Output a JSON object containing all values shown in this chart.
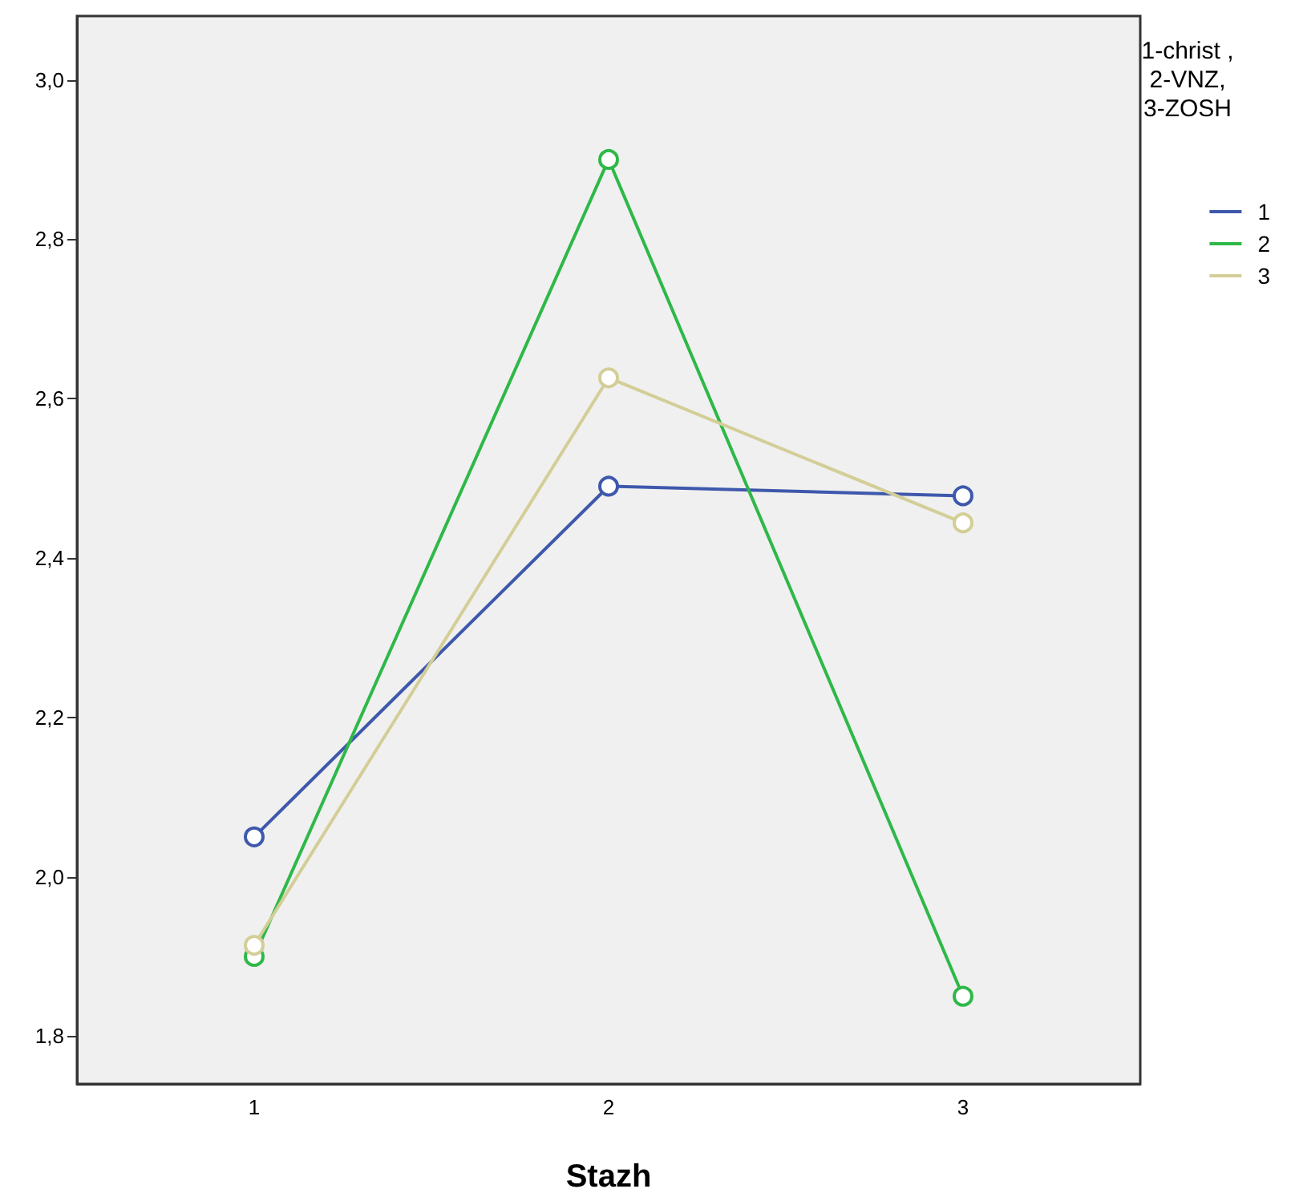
{
  "chart_data": {
    "type": "line",
    "xlabel": "Stazh",
    "legend_title": "1-christ ,\n2-VNZ,\n3-ZOSH",
    "categories": [
      "1",
      "2",
      "3"
    ],
    "series": [
      {
        "name": "1",
        "color": "#3e58ac",
        "values": [
          2.05,
          2.49,
          2.478
        ]
      },
      {
        "name": "2",
        "color": "#2eb848",
        "values": [
          1.9,
          2.9,
          1.85
        ]
      },
      {
        "name": "3",
        "color": "#d3ce97",
        "values": [
          1.914,
          2.626,
          2.444
        ]
      }
    ],
    "ylim": [
      1.74,
      3.08
    ],
    "yticks": [
      {
        "value": 1.8,
        "label": "1,8"
      },
      {
        "value": 2,
        "label": "2,0"
      },
      {
        "value": 2.2,
        "label": "2,2"
      },
      {
        "value": 2.4,
        "label": "2,4"
      },
      {
        "value": 2.6,
        "label": "2,6"
      },
      {
        "value": 2.8,
        "label": "2,8"
      },
      {
        "value": 3,
        "label": "3,0"
      }
    ],
    "grid": false,
    "legend": "right",
    "marker": "circle",
    "line_style": "solid"
  }
}
